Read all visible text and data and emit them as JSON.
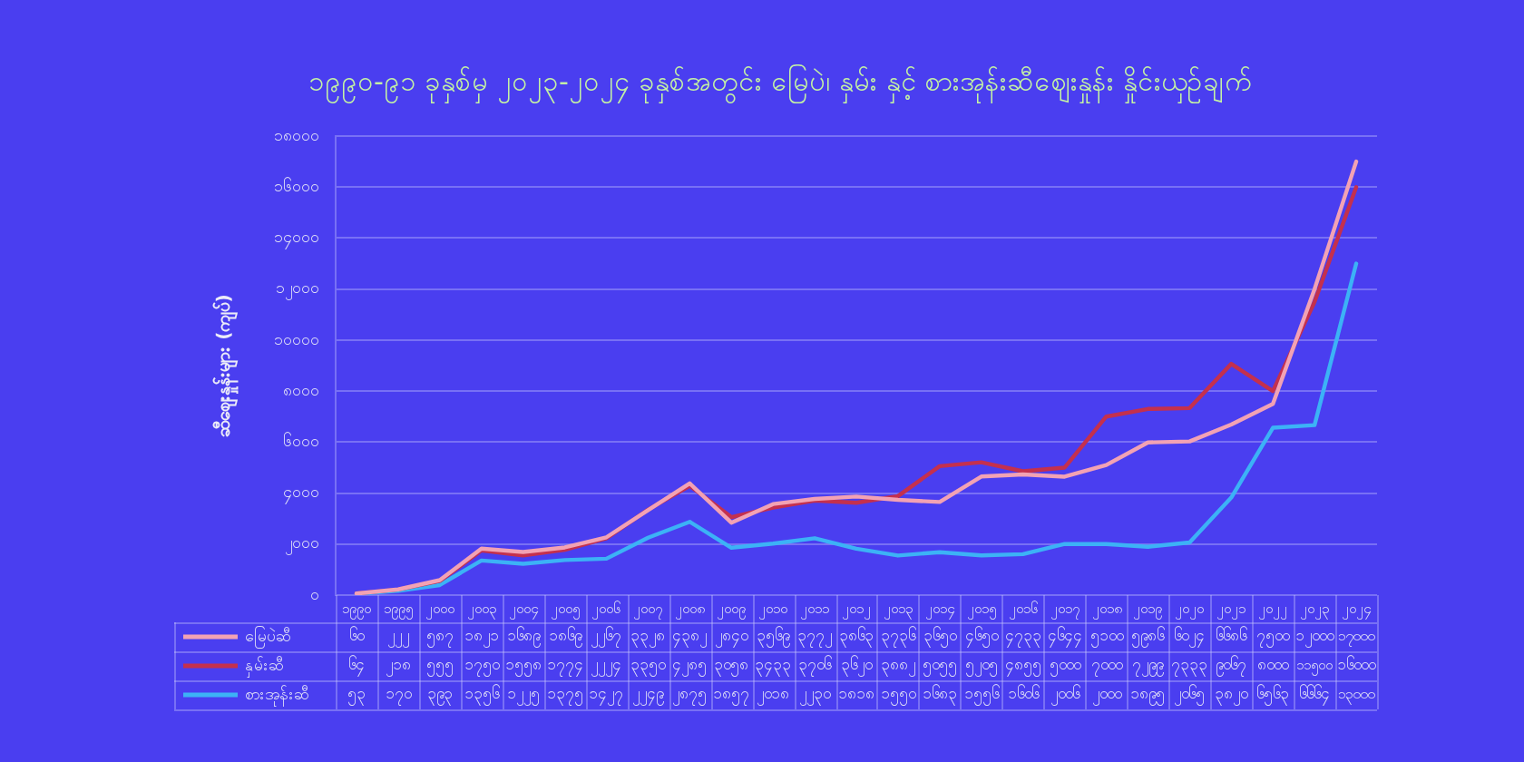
{
  "chart_data": {
    "type": "line",
    "title": "၁၉၉၀-၉၁ ခုနှစ်မှ ၂၀၂၃-၂၀၂၄ ခုနှစ်အတွင်း မြေပဲ၊ နှမ်း နှင့် စားအုန်းဆီဈေးနှုန်း နှိုင်းယှဉ်ချက်",
    "ylabel": "ဆီဈေးနှုန်းများ (ကျပ်)",
    "categories": [
      "၁၉၉၀",
      "၁၉၉၅",
      "၂၀၀၀",
      "၂၀၀၃",
      "၂၀၀၄",
      "၂၀၀၅",
      "၂၀၀၆",
      "၂၀၀၇",
      "၂၀၀၈",
      "၂၀၀၉",
      "၂၀၁၀",
      "၂၀၁၁",
      "၂၀၁၂",
      "၂၀၁၃",
      "၂၀၁၄",
      "၂၀၁၅",
      "၂၀၁၆",
      "၂၀၁၇",
      "၂၀၁၈",
      "၂၀၁၉",
      "၂၀၂၀",
      "၂၀၂၁",
      "၂၀၂၂",
      "၂၀၂၃",
      "၂၀၂၄"
    ],
    "series": [
      {
        "name": "မြေပဲဆီ",
        "color": "#f2a2b4",
        "values": [
          60,
          222,
          587,
          1821,
          1689,
          1869,
          2267,
          3328,
          4382,
          2840,
          3569,
          3772,
          3863,
          3736,
          3650,
          4650,
          4733,
          4644,
          5100,
          5986,
          6024,
          6686,
          7500,
          12000,
          17000
        ],
        "value_labels": [
          "၆၀",
          "၂၂၂",
          "၅၈၇",
          "၁၈၂၁",
          "၁၆၈၉",
          "၁၈၆၉",
          "၂၂၆၇",
          "၃၃၂၈",
          "၄၃၈၂",
          "၂၈၄၀",
          "၃၅၆၉",
          "၃၇၇၂",
          "၃၈၆၃",
          "၃၇၃၆",
          "၃၆၅၀",
          "၄၆၅၀",
          "၄၇၃၃",
          "၄၆၄၄",
          "၅၁၀၀",
          "၅၉၈၆",
          "၆၀၂၄",
          "၆၆၈၆",
          "၇၅၀၀",
          "၁၂၀၀၀",
          "၁၇၀၀၀"
        ]
      },
      {
        "name": "နှမ်းဆီ",
        "color": "#c4304e",
        "values": [
          64,
          218,
          555,
          1750,
          1558,
          1774,
          2224,
          3350,
          4285,
          3058,
          3433,
          3706,
          3620,
          3882,
          5055,
          5205,
          4855,
          5000,
          7000,
          7299,
          7333,
          9067,
          8000,
          11500,
          16000
        ],
        "value_labels": [
          "၆၄",
          "၂၁၈",
          "၅၅၅",
          "၁၇၅၀",
          "၁၅၅၈",
          "၁၇၇၄",
          "၂၂၂၄",
          "၃၃၅၀",
          "၄၂၈၅",
          "၃၀၅၈",
          "၃၄၃၃",
          "၃၇၀၆",
          "၃၆၂၀",
          "၃၈၈၂",
          "၅၀၅၅",
          "၅၂၀၅",
          "၄၈၅၅",
          "၅၀၀၀",
          "၇၀၀၀",
          "၇၂၉၉",
          "၇၃၃၃",
          "၉၀၆၇",
          "၈၀၀၀",
          "၁၁၅၀၀",
          "၁၆၀၀၀"
        ]
      },
      {
        "name": "စားအုန်းဆီ",
        "color": "#3cb2f6",
        "values": [
          53,
          170,
          393,
          1356,
          1225,
          1375,
          1427,
          2249,
          2875,
          1857,
          2018,
          2230,
          1818,
          1550,
          1683,
          1556,
          1606,
          2006,
          2000,
          1895,
          2065,
          3820,
          6563,
          6664,
          13000
        ],
        "value_labels": [
          "၅၃",
          "၁၇၀",
          "၃၉၃",
          "၁၃၅၆",
          "၁၂၂၅",
          "၁၃၇၅",
          "၁၄၂၇",
          "၂၂၄၉",
          "၂၈၇၅",
          "၁၈၅၇",
          "၂၀၁၈",
          "၂၂၃၀",
          "၁၈၁၈",
          "၁၅၅၀",
          "၁၆၈၃",
          "၁၅၅၆",
          "၁၆၀၆",
          "၂၀၀၆",
          "၂၀၀၀",
          "၁၈၉၅",
          "၂၀၆၅",
          "၃၈၂၀",
          "၆၅၆၃",
          "၆၆၆၄",
          "၁၃၀၀၀"
        ]
      }
    ],
    "ylim": [
      0,
      18000
    ],
    "yticks": [
      {
        "value": 0,
        "label": "၀"
      },
      {
        "value": 2000,
        "label": "၂၀၀၀"
      },
      {
        "value": 4000,
        "label": "၄၀၀၀"
      },
      {
        "value": 6000,
        "label": "၆၀၀၀"
      },
      {
        "value": 8000,
        "label": "၈၀၀၀"
      },
      {
        "value": 10000,
        "label": "၁၀၀၀၀"
      },
      {
        "value": 12000,
        "label": "၁၂၀၀၀"
      },
      {
        "value": 14000,
        "label": "၁၄၀၀၀"
      },
      {
        "value": 16000,
        "label": "၁၆၀၀၀"
      },
      {
        "value": 18000,
        "label": "၁၈၀၀၀"
      }
    ],
    "grid": "y",
    "legend": "bottom",
    "marker": "none"
  }
}
